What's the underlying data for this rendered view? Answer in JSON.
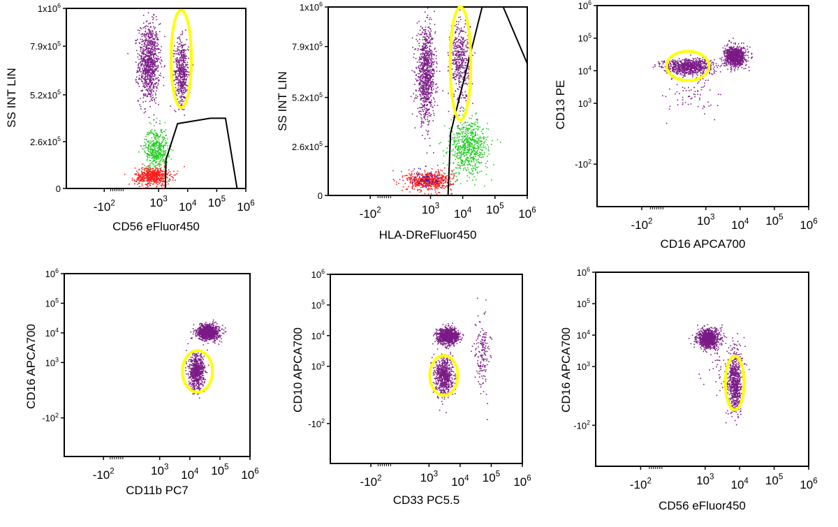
{
  "chart_data": [
    {
      "type": "scatter",
      "xlabel": "CD56 eFluor450",
      "ylabel": "SS INT LIN",
      "x_scale": "logicle",
      "y_scale": "linear",
      "xticks": [
        "-10^2",
        "10^3",
        "10^4",
        "10^5",
        "10^6"
      ],
      "xtick_values": [
        -100,
        1000,
        10000,
        100000,
        1000000
      ],
      "yticks": [
        "0",
        "2.6x10^5",
        "5.2x10^5",
        "7.9x10^5",
        "1x10^6"
      ],
      "ytick_values": [
        0,
        260000,
        520000,
        790000,
        1000000
      ],
      "xlim": [
        -400,
        1000000
      ],
      "ylim": [
        0,
        1000000
      ],
      "populations": [
        {
          "color": "#7a1a86",
          "x_center": 450,
          "y_center": 700000,
          "x_spread": 0.18,
          "y_spread": 110000,
          "n": 900
        },
        {
          "color": "#7a1a86",
          "x_center": 6000,
          "y_center": 650000,
          "x_spread": 0.12,
          "y_spread": 90000,
          "n": 500
        },
        {
          "color": "#22cc22",
          "x_center": 800,
          "y_center": 220000,
          "x_spread": 0.2,
          "y_spread": 60000,
          "n": 450
        },
        {
          "color": "#ff1a1a",
          "x_center": 600,
          "y_center": 70000,
          "x_spread": 0.3,
          "y_spread": 25000,
          "n": 550
        }
      ],
      "highlight_color": "#ffff00",
      "highlight": {
        "x_center": 6000,
        "y_center": 720000,
        "x_radius_decades": 0.35,
        "y_radius": 270000
      },
      "gate_polyline": [
        [
          1700,
          0
        ],
        [
          1800,
          160000
        ],
        [
          4500,
          360000
        ],
        [
          60000,
          390000
        ],
        [
          200000,
          390000
        ],
        [
          500000,
          0
        ]
      ]
    },
    {
      "type": "scatter",
      "xlabel": "HLA-DReFluor450",
      "ylabel": "SS INT LIN",
      "x_scale": "logicle",
      "y_scale": "linear",
      "xticks": [
        "-10^2",
        "10^3",
        "10^4",
        "10^5",
        "10^6"
      ],
      "xtick_values": [
        -100,
        1000,
        10000,
        100000,
        1000000
      ],
      "yticks": [
        "0",
        "2.6x10^5",
        "5.2x10^5",
        "7.9x10^5",
        "1x10^6"
      ],
      "ytick_values": [
        0,
        260000,
        520000,
        790000,
        1000000
      ],
      "xlim": [
        -400,
        1000000
      ],
      "ylim": [
        0,
        1000000
      ],
      "populations": [
        {
          "color": "#7a1a86",
          "x_center": 700,
          "y_center": 640000,
          "x_spread": 0.14,
          "y_spread": 120000,
          "n": 900
        },
        {
          "color": "#7a1a86",
          "x_center": 8000,
          "y_center": 720000,
          "x_spread": 0.15,
          "y_spread": 110000,
          "n": 450
        },
        {
          "color": "#22cc22",
          "x_center": 15000,
          "y_center": 260000,
          "x_spread": 0.3,
          "y_spread": 70000,
          "n": 650
        },
        {
          "color": "#ff1a1a",
          "x_center": 900,
          "y_center": 80000,
          "x_spread": 0.35,
          "y_spread": 25000,
          "n": 600
        },
        {
          "color": "#2222cc",
          "x_center": 700,
          "y_center": 90000,
          "x_spread": 0.25,
          "y_spread": 30000,
          "n": 60
        }
      ],
      "highlight_color": "#ffff00",
      "highlight": {
        "x_center": 8500,
        "y_center": 700000,
        "x_radius_decades": 0.32,
        "y_radius": 300000
      },
      "gate_polyline_1": [
        [
          3500,
          0
        ],
        [
          4200,
          330000
        ],
        [
          40000,
          1000000
        ]
      ],
      "gate_polyline_2": [
        [
          180000,
          1000000
        ],
        [
          1000000,
          700000
        ]
      ]
    },
    {
      "type": "scatter",
      "xlabel": "CD16 APCA700",
      "ylabel": "CD13 PE",
      "x_scale": "logicle",
      "y_scale": "logicle",
      "xticks": [
        "-10^2",
        "10^3",
        "10^4",
        "10^5",
        "10^6"
      ],
      "xtick_values": [
        -100,
        1000,
        10000,
        100000,
        1000000
      ],
      "yticks": [
        "-10^2",
        "10^3",
        "10^4",
        "10^5",
        "10^6"
      ],
      "ytick_values": [
        -100,
        1000,
        10000,
        100000,
        1000000
      ],
      "xlim": [
        -400,
        1000000
      ],
      "ylim": [
        -400,
        1000000
      ],
      "populations": [
        {
          "color": "#7a1a86",
          "x_center": 300,
          "y_center": 14000,
          "x_spread": 0.35,
          "y_spread": 0.12,
          "n": 800
        },
        {
          "color": "#7a1a86",
          "x_center": 7000,
          "y_center": 28000,
          "x_spread": 0.15,
          "y_spread": 0.15,
          "n": 900
        },
        {
          "color": "#7a1a86",
          "x_center": 400,
          "y_center": 2000,
          "x_spread": 0.4,
          "y_spread": 0.35,
          "n": 80
        }
      ],
      "highlight_color": "#ffff00",
      "highlight": {
        "x_center": 300,
        "y_center": 14000,
        "x_radius_decades": 0.62,
        "y_radius_decades": 0.45
      }
    },
    {
      "type": "scatter",
      "xlabel": "CD11b PC7",
      "ylabel": "CD16 APCA700",
      "x_scale": "logicle",
      "y_scale": "logicle",
      "xticks": [
        "-10^2",
        "10^3",
        "10^4",
        "10^5",
        "10^6"
      ],
      "xtick_values": [
        -100,
        1000,
        10000,
        100000,
        1000000
      ],
      "yticks": [
        "-10^2",
        "10^3",
        "10^4",
        "10^5",
        "10^6"
      ],
      "ytick_values": [
        -100,
        1000,
        10000,
        100000,
        1000000
      ],
      "xlim": [
        -400,
        1000000
      ],
      "ylim": [
        -400,
        1000000
      ],
      "populations": [
        {
          "color": "#7a1a86",
          "x_center": 40000,
          "y_center": 11000,
          "x_spread": 0.18,
          "y_spread": 0.13,
          "n": 900
        },
        {
          "color": "#7a1a86",
          "x_center": 16000,
          "y_center": 500,
          "x_spread": 0.13,
          "y_spread": 0.3,
          "n": 650
        }
      ],
      "highlight_color": "#ffff00",
      "highlight": {
        "x_center": 18000,
        "y_center": 500,
        "x_radius_decades": 0.5,
        "y_radius_decades": 0.7
      }
    },
    {
      "type": "scatter",
      "xlabel": "CD33 PC5.5",
      "ylabel": "CD10 APCA700",
      "x_scale": "logicle",
      "y_scale": "logicle",
      "xticks": [
        "-10^2",
        "10^3",
        "10^4",
        "10^5",
        "10^6"
      ],
      "xtick_values": [
        -100,
        1000,
        10000,
        100000,
        1000000
      ],
      "yticks": [
        "-10^2",
        "10^3",
        "10^4",
        "10^5",
        "10^6"
      ],
      "ytick_values": [
        -100,
        1000,
        10000,
        100000,
        1000000
      ],
      "xlim": [
        -400,
        1000000
      ],
      "ylim": [
        -400,
        1000000
      ],
      "populations": [
        {
          "color": "#7a1a86",
          "x_center": 4000,
          "y_center": 10000,
          "x_spread": 0.17,
          "y_spread": 0.13,
          "n": 900
        },
        {
          "color": "#7a1a86",
          "x_center": 3000,
          "y_center": 500,
          "x_spread": 0.14,
          "y_spread": 0.3,
          "n": 650
        },
        {
          "color": "#7a1a86",
          "x_center": 50000,
          "y_center": 3000,
          "x_spread": 0.12,
          "y_spread": 0.6,
          "n": 160
        }
      ],
      "highlight_color": "#ffff00",
      "highlight": {
        "x_center": 3000,
        "y_center": 500,
        "x_radius_decades": 0.45,
        "y_radius_decades": 0.65
      }
    },
    {
      "type": "scatter",
      "xlabel": "CD56 eFluor450",
      "ylabel": "CD16 APCA700",
      "x_scale": "logicle",
      "y_scale": "logicle",
      "xticks": [
        "-10^2",
        "10^3",
        "10^4",
        "10^5",
        "10^6"
      ],
      "xtick_values": [
        -100,
        1000,
        10000,
        100000,
        1000000
      ],
      "yticks": [
        "-10^2",
        "10^3",
        "10^4",
        "10^5",
        "10^6"
      ],
      "ytick_values": [
        -100,
        1000,
        10000,
        100000,
        1000000
      ],
      "xlim": [
        -400,
        1000000
      ],
      "ylim": [
        -400,
        1000000
      ],
      "populations": [
        {
          "color": "#7a1a86",
          "x_center": 1200,
          "y_center": 8000,
          "x_spread": 0.16,
          "y_spread": 0.15,
          "n": 850
        },
        {
          "color": "#7a1a86",
          "x_center": 7000,
          "y_center": 300,
          "x_spread": 0.1,
          "y_spread": 0.45,
          "n": 650
        },
        {
          "color": "#7a1a86",
          "x_center": 4000,
          "y_center": 1500,
          "x_spread": 0.3,
          "y_spread": 0.6,
          "n": 100
        }
      ],
      "highlight_color": "#ffff00",
      "highlight": {
        "x_center": 7200,
        "y_center": 300,
        "x_radius_decades": 0.27,
        "y_radius_decades": 0.85
      }
    }
  ]
}
